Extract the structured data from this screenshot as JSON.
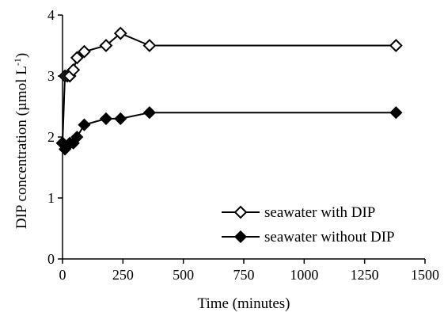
{
  "chart_data": {
    "type": "line",
    "xlabel": "Time (minutes)",
    "ylabel": "DIP concentration (µmol L",
    "ylabel_sup": "-1",
    "ylabel_close": ")",
    "xlim": [
      0,
      1500
    ],
    "ylim": [
      0,
      4
    ],
    "xticks": [
      0,
      250,
      500,
      750,
      1000,
      1250,
      1500
    ],
    "yticks": [
      0,
      1,
      2,
      3,
      4
    ],
    "xtick_labels": [
      "0",
      "250",
      "500",
      "750",
      "1000",
      "1250",
      "1500"
    ],
    "ytick_labels": [
      "0",
      "1",
      "2",
      "3",
      "4"
    ],
    "grid": false,
    "legend_position": "bottom-right",
    "series": [
      {
        "name": "seawater with DIP",
        "marker": "open-diamond",
        "color": "#000000",
        "x": [
          0,
          10,
          20,
          30,
          45,
          60,
          90,
          180,
          240,
          360,
          1380
        ],
        "y": [
          1.9,
          3.0,
          3.0,
          3.0,
          3.1,
          3.3,
          3.4,
          3.5,
          3.7,
          3.5,
          3.5
        ]
      },
      {
        "name": "seawater without DIP",
        "marker": "filled-diamond",
        "color": "#000000",
        "x": [
          0,
          10,
          20,
          30,
          45,
          60,
          90,
          180,
          240,
          360,
          1380
        ],
        "y": [
          1.9,
          1.8,
          1.85,
          1.9,
          1.9,
          2.0,
          2.2,
          2.3,
          2.3,
          2.4,
          2.4
        ]
      }
    ]
  }
}
